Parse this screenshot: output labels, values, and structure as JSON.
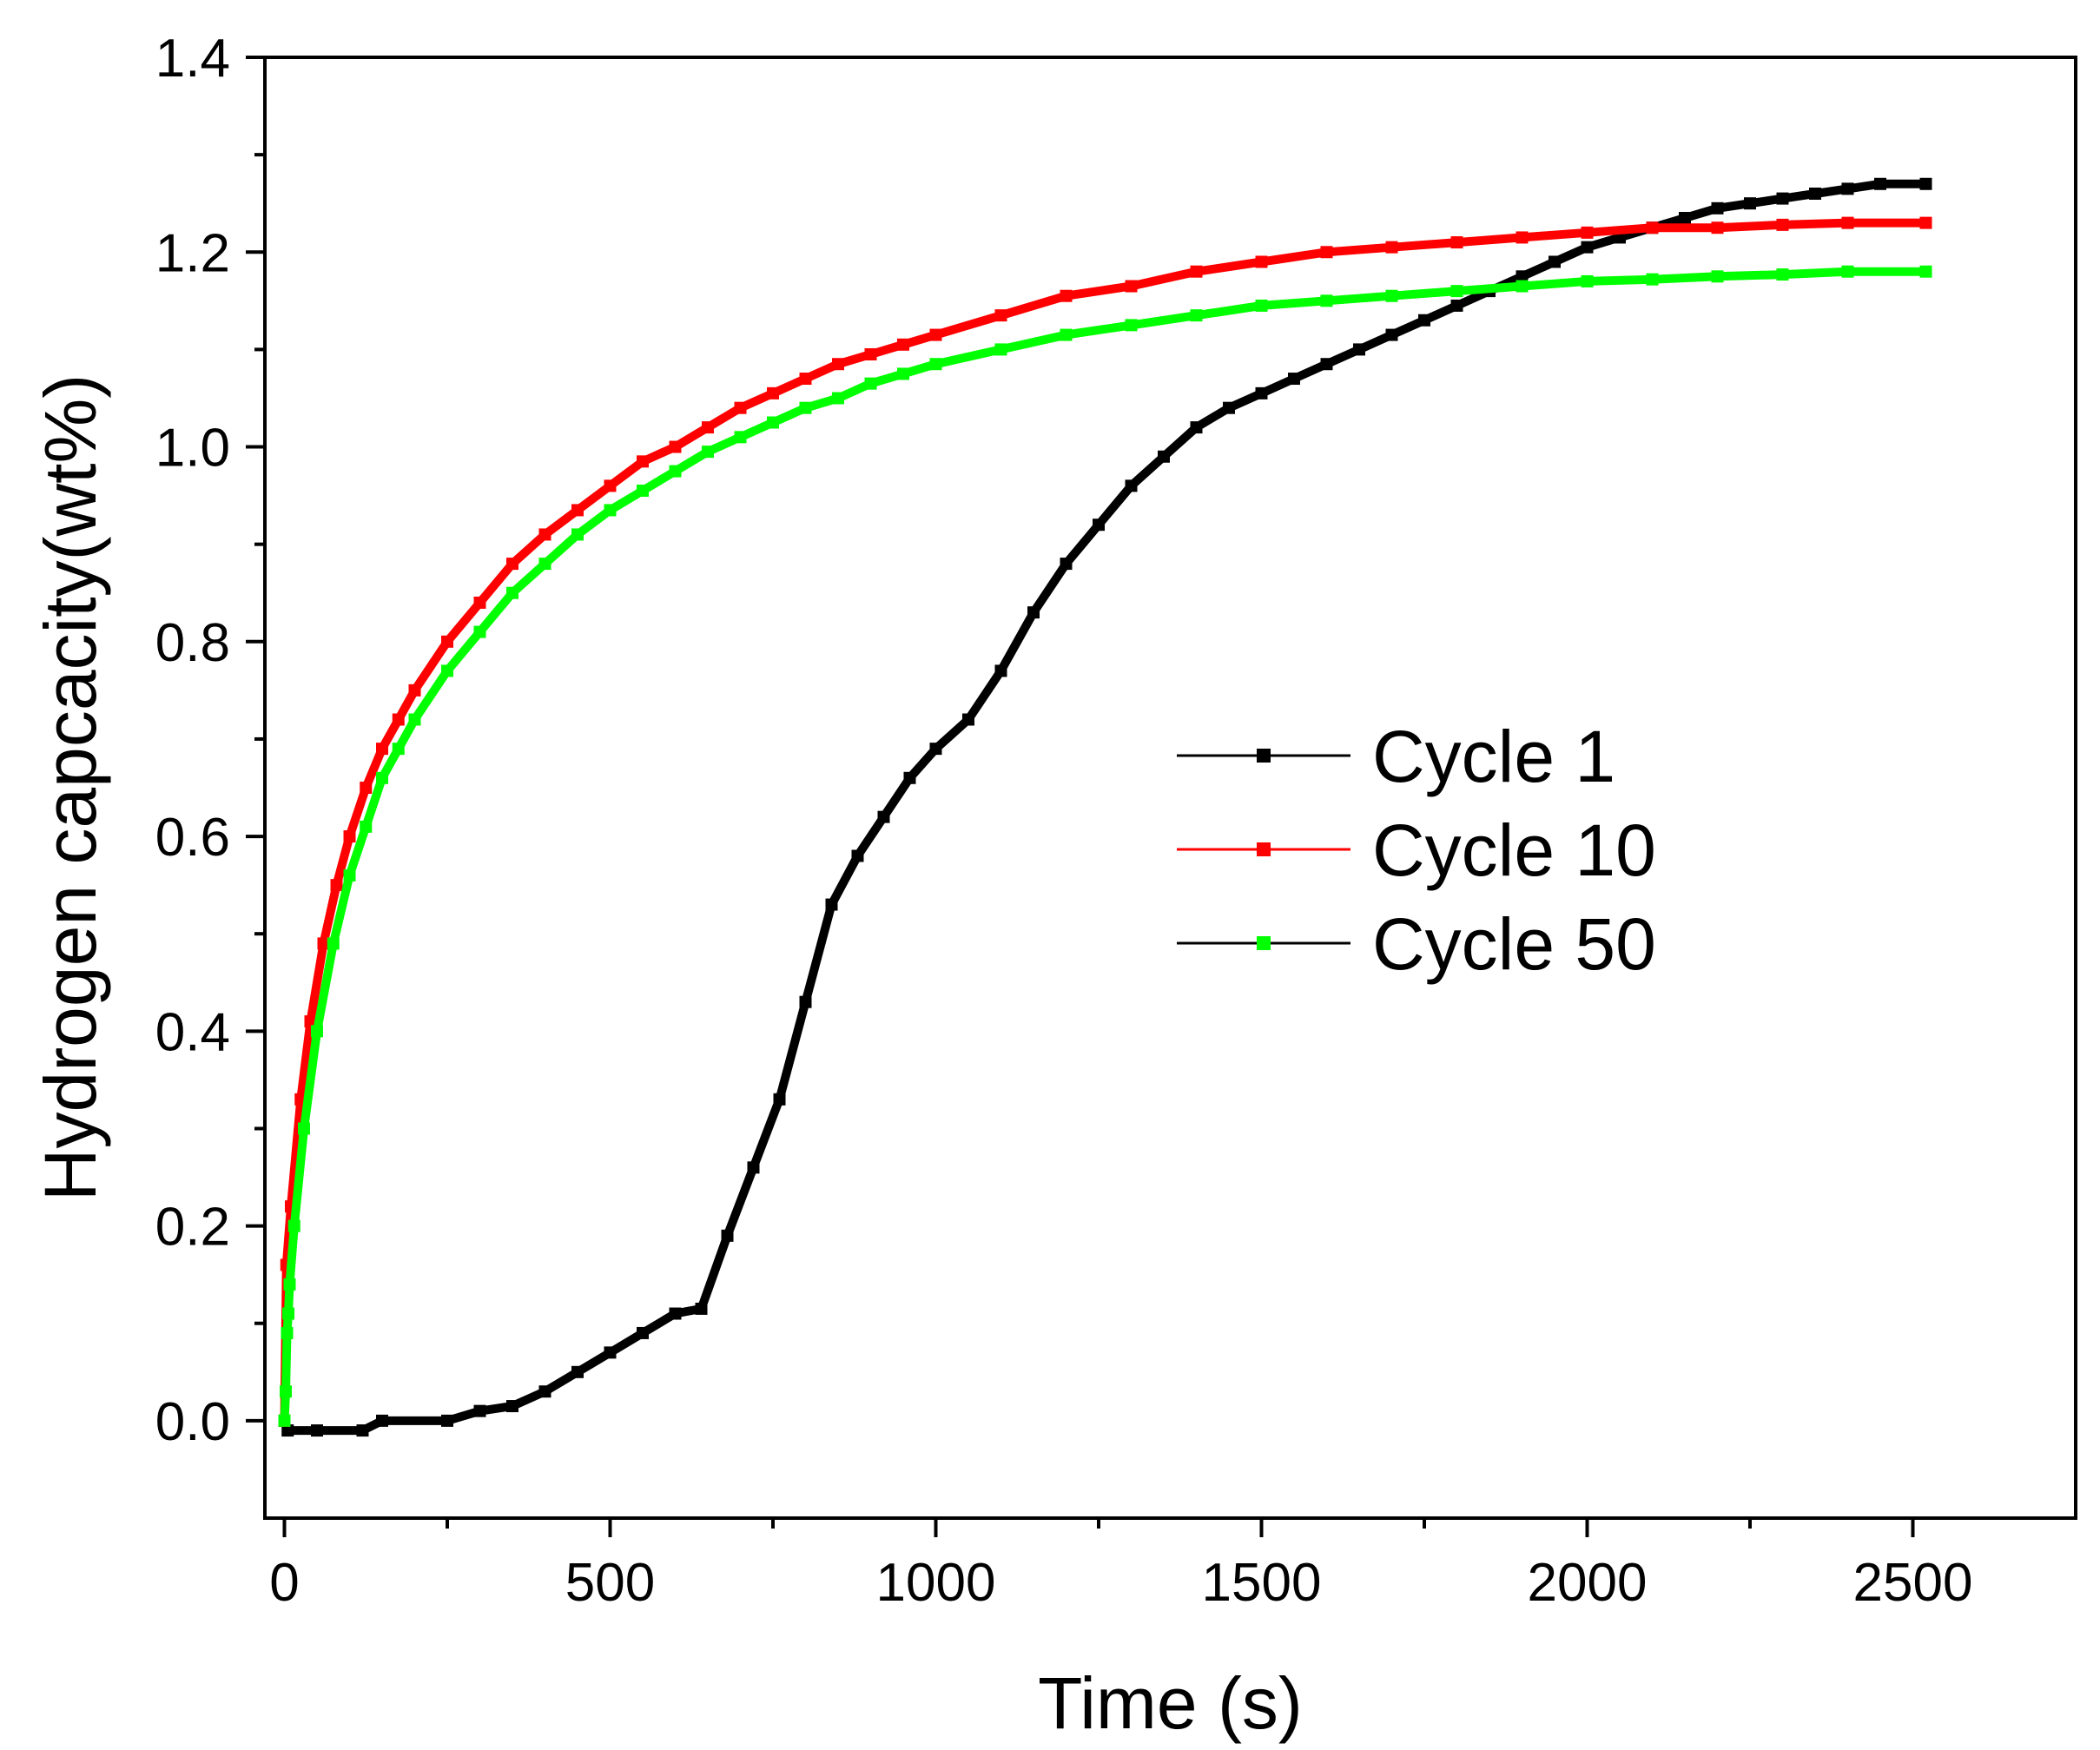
{
  "chart_data": {
    "type": "line",
    "xlabel": "Time (s)",
    "ylabel": "Hydrogen capcacity(wt%)",
    "xlim": [
      -30,
      2750
    ],
    "ylim": [
      -0.1,
      1.4
    ],
    "xticks": [
      0,
      500,
      1000,
      1500,
      2000,
      2500
    ],
    "xtick_labels": [
      "0",
      "500",
      "1000",
      "1500",
      "2000",
      "2500"
    ],
    "yticks": [
      0.0,
      0.2,
      0.4,
      0.6,
      0.8,
      1.0,
      1.2,
      1.4
    ],
    "ytick_labels": [
      "0.0",
      "0.2",
      "0.4",
      "0.6",
      "0.8",
      "1.0",
      "1.2",
      "1.4"
    ],
    "grid": false,
    "legend_position": "center-right",
    "series": [
      {
        "name": "Cycle 1",
        "color": "#000000",
        "points": [
          [
            0,
            0.0
          ],
          [
            5,
            -0.01
          ],
          [
            50,
            -0.01
          ],
          [
            120,
            -0.01
          ],
          [
            150,
            0.0
          ],
          [
            250,
            0.0
          ],
          [
            300,
            0.01
          ],
          [
            350,
            0.015
          ],
          [
            400,
            0.03
          ],
          [
            450,
            0.05
          ],
          [
            500,
            0.07
          ],
          [
            550,
            0.09
          ],
          [
            600,
            0.11
          ],
          [
            640,
            0.115
          ],
          [
            680,
            0.19
          ],
          [
            720,
            0.26
          ],
          [
            760,
            0.33
          ],
          [
            800,
            0.43
          ],
          [
            840,
            0.53
          ],
          [
            880,
            0.58
          ],
          [
            920,
            0.62
          ],
          [
            960,
            0.66
          ],
          [
            1000,
            0.69
          ],
          [
            1050,
            0.72
          ],
          [
            1100,
            0.77
          ],
          [
            1150,
            0.83
          ],
          [
            1200,
            0.88
          ],
          [
            1250,
            0.92
          ],
          [
            1300,
            0.96
          ],
          [
            1350,
            0.99
          ],
          [
            1400,
            1.02
          ],
          [
            1450,
            1.04
          ],
          [
            1500,
            1.055
          ],
          [
            1550,
            1.07
          ],
          [
            1600,
            1.085
          ],
          [
            1650,
            1.1
          ],
          [
            1700,
            1.115
          ],
          [
            1750,
            1.13
          ],
          [
            1800,
            1.145
          ],
          [
            1850,
            1.16
          ],
          [
            1900,
            1.175
          ],
          [
            1950,
            1.19
          ],
          [
            2000,
            1.205
          ],
          [
            2050,
            1.215
          ],
          [
            2100,
            1.225
          ],
          [
            2150,
            1.235
          ],
          [
            2200,
            1.245
          ],
          [
            2250,
            1.25
          ],
          [
            2300,
            1.255
          ],
          [
            2350,
            1.26
          ],
          [
            2400,
            1.265
          ],
          [
            2450,
            1.27
          ],
          [
            2520,
            1.27
          ]
        ]
      },
      {
        "name": "Cycle 10",
        "color": "#ff0000",
        "points": [
          [
            0,
            0.0
          ],
          [
            3,
            0.16
          ],
          [
            10,
            0.22
          ],
          [
            25,
            0.33
          ],
          [
            40,
            0.41
          ],
          [
            60,
            0.49
          ],
          [
            80,
            0.55
          ],
          [
            100,
            0.6
          ],
          [
            125,
            0.65
          ],
          [
            150,
            0.69
          ],
          [
            175,
            0.72
          ],
          [
            200,
            0.75
          ],
          [
            250,
            0.8
          ],
          [
            300,
            0.84
          ],
          [
            350,
            0.88
          ],
          [
            400,
            0.91
          ],
          [
            450,
            0.935
          ],
          [
            500,
            0.96
          ],
          [
            550,
            0.985
          ],
          [
            600,
            1.0
          ],
          [
            650,
            1.02
          ],
          [
            700,
            1.04
          ],
          [
            750,
            1.055
          ],
          [
            800,
            1.07
          ],
          [
            850,
            1.085
          ],
          [
            900,
            1.095
          ],
          [
            950,
            1.105
          ],
          [
            1000,
            1.115
          ],
          [
            1100,
            1.135
          ],
          [
            1200,
            1.155
          ],
          [
            1300,
            1.165
          ],
          [
            1400,
            1.18
          ],
          [
            1500,
            1.19
          ],
          [
            1600,
            1.2
          ],
          [
            1700,
            1.205
          ],
          [
            1800,
            1.21
          ],
          [
            1900,
            1.215
          ],
          [
            2000,
            1.22
          ],
          [
            2100,
            1.225
          ],
          [
            2200,
            1.225
          ],
          [
            2300,
            1.228
          ],
          [
            2400,
            1.23
          ],
          [
            2520,
            1.23
          ]
        ]
      },
      {
        "name": "Cycle 50",
        "color": "#00ff00",
        "points": [
          [
            0,
            0.0
          ],
          [
            2,
            0.03
          ],
          [
            4,
            0.09
          ],
          [
            6,
            0.11
          ],
          [
            8,
            0.14
          ],
          [
            15,
            0.2
          ],
          [
            30,
            0.3
          ],
          [
            50,
            0.4
          ],
          [
            75,
            0.49
          ],
          [
            100,
            0.56
          ],
          [
            125,
            0.61
          ],
          [
            150,
            0.66
          ],
          [
            175,
            0.69
          ],
          [
            200,
            0.72
          ],
          [
            250,
            0.77
          ],
          [
            300,
            0.81
          ],
          [
            350,
            0.85
          ],
          [
            400,
            0.88
          ],
          [
            450,
            0.91
          ],
          [
            500,
            0.935
          ],
          [
            550,
            0.955
          ],
          [
            600,
            0.975
          ],
          [
            650,
            0.995
          ],
          [
            700,
            1.01
          ],
          [
            750,
            1.025
          ],
          [
            800,
            1.04
          ],
          [
            850,
            1.05
          ],
          [
            900,
            1.065
          ],
          [
            950,
            1.075
          ],
          [
            1000,
            1.085
          ],
          [
            1100,
            1.1
          ],
          [
            1200,
            1.115
          ],
          [
            1300,
            1.125
          ],
          [
            1400,
            1.135
          ],
          [
            1500,
            1.145
          ],
          [
            1600,
            1.15
          ],
          [
            1700,
            1.155
          ],
          [
            1800,
            1.16
          ],
          [
            1900,
            1.165
          ],
          [
            2000,
            1.17
          ],
          [
            2100,
            1.172
          ],
          [
            2200,
            1.175
          ],
          [
            2300,
            1.177
          ],
          [
            2400,
            1.18
          ],
          [
            2520,
            1.18
          ]
        ]
      }
    ]
  }
}
